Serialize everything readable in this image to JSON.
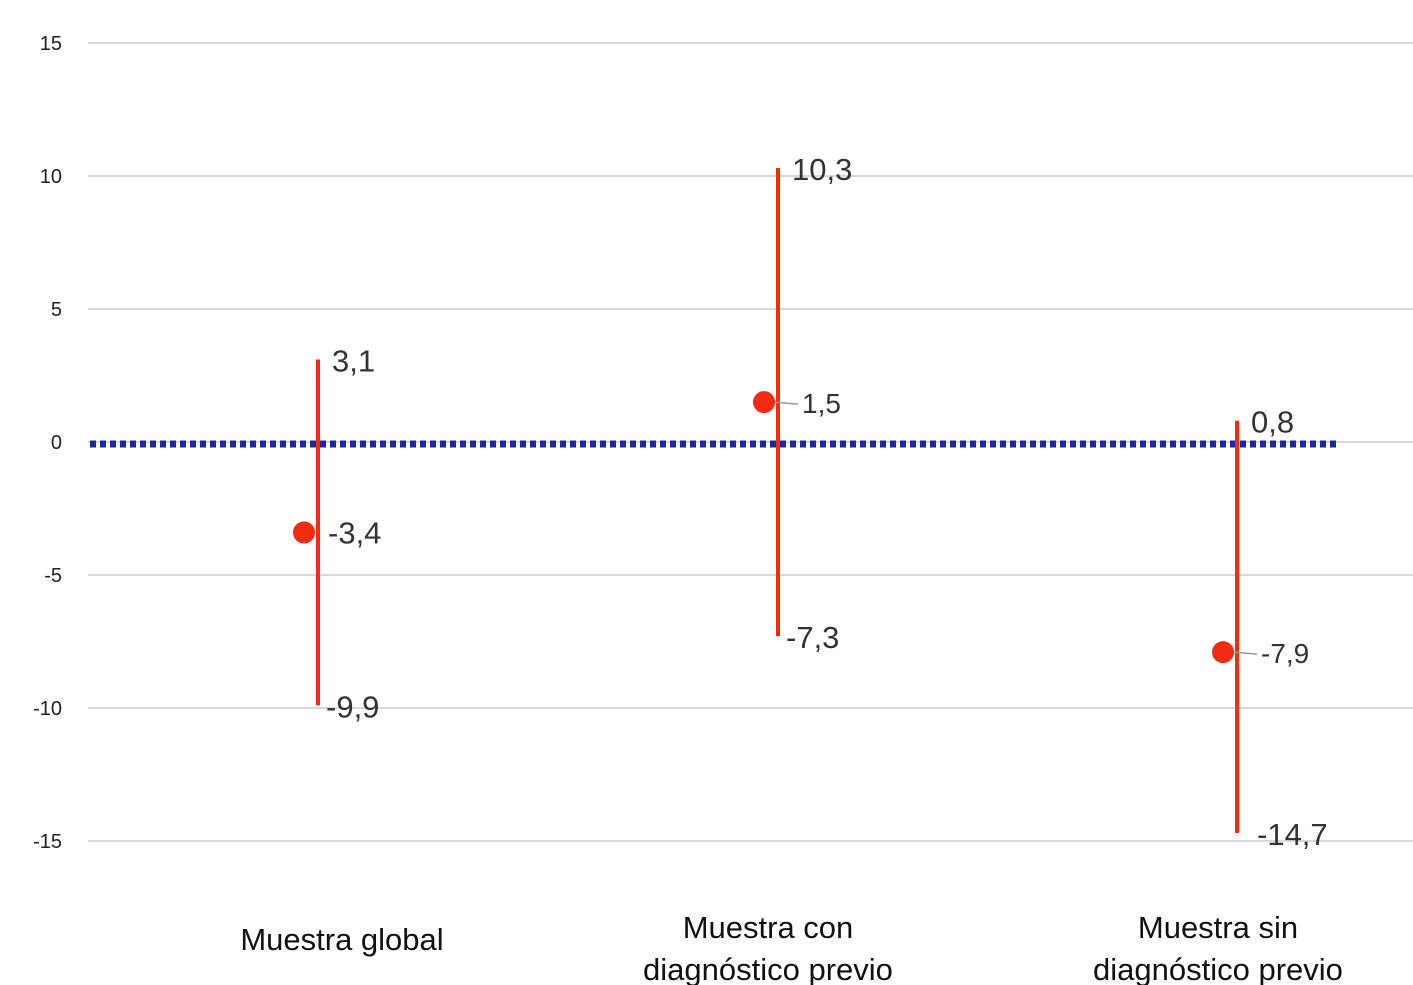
{
  "chart_data": {
    "type": "scatter",
    "title": "",
    "xlabel": "",
    "ylabel": "",
    "ylim": [
      -15,
      15
    ],
    "yticks": [
      15,
      10,
      5,
      0,
      -5,
      -10,
      -15
    ],
    "ytick_labels": [
      "15",
      "10",
      "5",
      "0",
      "-5",
      "-10",
      "-15"
    ],
    "grid": true,
    "reference_line": {
      "y": 0,
      "style": "dotted",
      "color": "#1a2a9c"
    },
    "marker_color": "#f22b12",
    "categories": [
      {
        "label_lines": [
          "Muestra global"
        ],
        "value": -3.4,
        "upper": 3.1,
        "lower": -9.9,
        "value_label": "-3,4",
        "upper_label": "3,1",
        "lower_label": "-9,9"
      },
      {
        "label_lines": [
          "Muestra con",
          "diagnóstico previo"
        ],
        "value": 1.5,
        "upper": 10.3,
        "lower": -7.3,
        "value_label": "1,5",
        "upper_label": "10,3",
        "lower_label": "-7,3"
      },
      {
        "label_lines": [
          "Muestra sin",
          "diagnóstico previo"
        ],
        "value": -7.9,
        "upper": 0.8,
        "lower": -14.7,
        "value_label": "-7,9",
        "upper_label": "0,8",
        "lower_label": "-14,7"
      }
    ]
  }
}
